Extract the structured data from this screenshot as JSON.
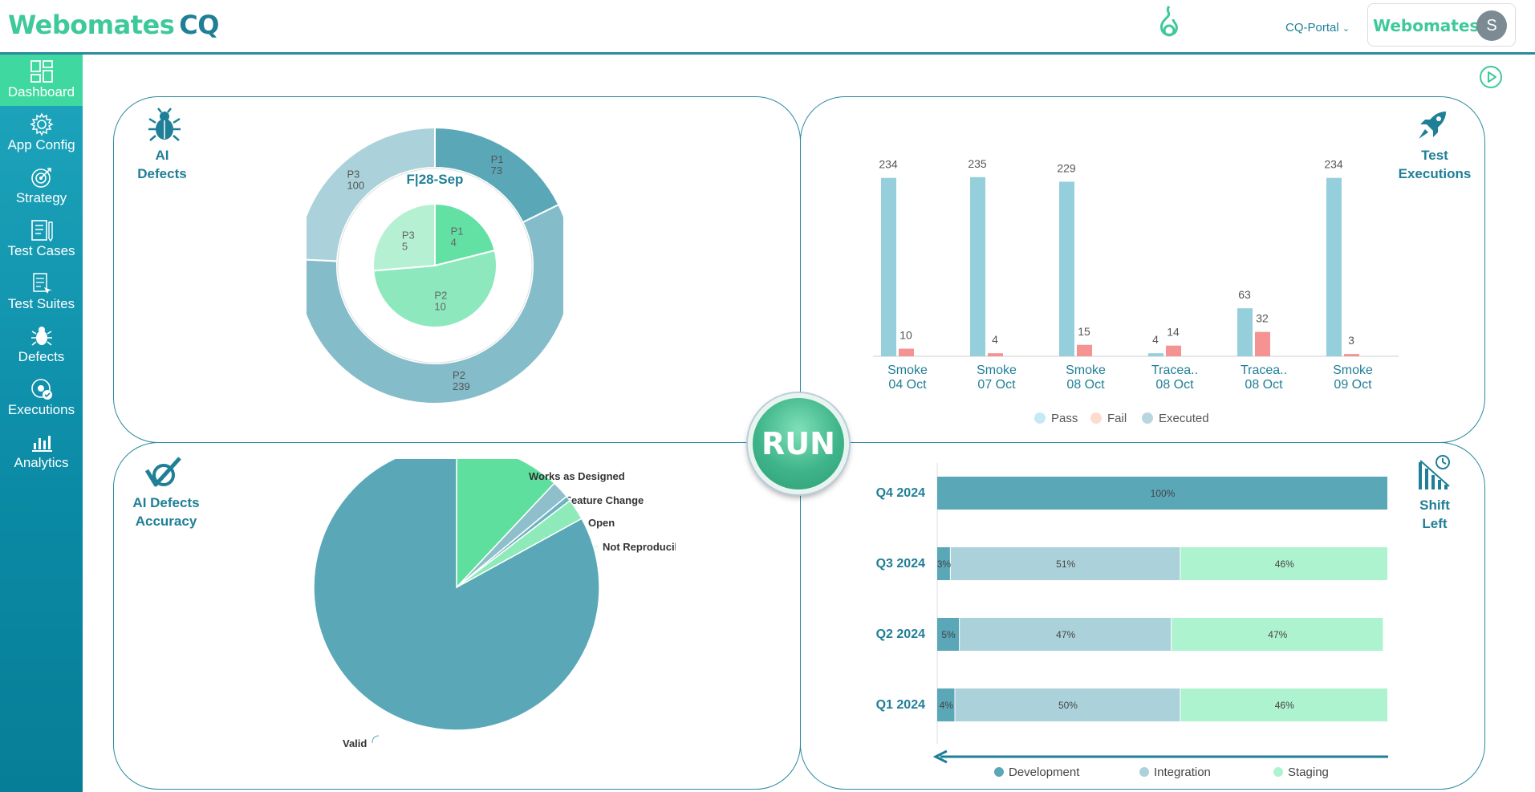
{
  "header": {
    "logo_main": "Webomates",
    "logo_suffix": "CQ",
    "portal_label": "CQ-Portal",
    "brand_name": "Webomates",
    "avatar_initial": "S"
  },
  "sidebar": {
    "items": [
      {
        "label": "Dashboard",
        "icon": "dashboard-icon",
        "active": true
      },
      {
        "label": "App Config",
        "icon": "gear-icon"
      },
      {
        "label": "Strategy",
        "icon": "target-icon"
      },
      {
        "label": "Test Cases",
        "icon": "test-cases-icon"
      },
      {
        "label": "Test Suites",
        "icon": "test-suites-icon"
      },
      {
        "label": "Defects",
        "icon": "bug-icon"
      },
      {
        "label": "Executions",
        "icon": "executions-icon"
      },
      {
        "label": "Analytics",
        "icon": "analytics-icon"
      }
    ]
  },
  "run_button": {
    "label": "RUN"
  },
  "panels": {
    "ai_defects": {
      "title_line1": "AI",
      "title_line2": "Defects"
    },
    "test_executions": {
      "title_line1": "Test",
      "title_line2": "Executions"
    },
    "accuracy": {
      "title_line1": "AI Defects",
      "title_line2": "Accuracy"
    },
    "shift_left": {
      "title_line1": "Shift",
      "title_line2": "Left"
    }
  },
  "colors": {
    "teal": "#1f7f97",
    "green": "#3ec99a",
    "pass": "#95cfdc",
    "fail": "#f59393",
    "dev": "#5aa7b8",
    "integration": "#abd2da",
    "staging": "#aef3cf"
  },
  "chart_data": [
    {
      "type": "pie",
      "id": "ai-defects-donut",
      "center_label": "F|28-Sep",
      "outer": [
        {
          "name": "P1",
          "value": 73
        },
        {
          "name": "P2",
          "value": 239
        },
        {
          "name": "P3",
          "value": 100
        }
      ],
      "inner": [
        {
          "name": "P1",
          "value": 4
        },
        {
          "name": "P2",
          "value": 10
        },
        {
          "name": "P3",
          "value": 5
        }
      ]
    },
    {
      "type": "bar",
      "id": "test-executions",
      "categories": [
        [
          "Smoke",
          "04 Oct"
        ],
        [
          "Smoke",
          "07 Oct"
        ],
        [
          "Smoke",
          "08 Oct"
        ],
        [
          "Tracea..",
          "08 Oct"
        ],
        [
          "Tracea..",
          "08 Oct"
        ],
        [
          "Smoke",
          "09 Oct"
        ]
      ],
      "series": [
        {
          "name": "Pass",
          "values": [
            234,
            235,
            229,
            4,
            63,
            234
          ]
        },
        {
          "name": "Fail",
          "values": [
            10,
            4,
            15,
            14,
            32,
            3
          ]
        }
      ],
      "legend": [
        "Pass",
        "Fail",
        "Executed"
      ],
      "ylim": [
        0,
        240
      ]
    },
    {
      "type": "pie",
      "id": "ai-defects-accuracy",
      "slices": [
        {
          "name": "Works as Designed",
          "value": 12
        },
        {
          "name": "Feature Change",
          "value": 2
        },
        {
          "name": "Open",
          "value": 0.6
        },
        {
          "name": "Not Reproducible",
          "value": 2.4
        },
        {
          "name": "Valid",
          "value": 83
        }
      ]
    },
    {
      "type": "bar",
      "id": "shift-left",
      "orientation": "horizontal-stacked",
      "categories": [
        "Q4 2024",
        "Q3 2024",
        "Q2 2024",
        "Q1 2024"
      ],
      "series": [
        {
          "name": "Development",
          "values": [
            100,
            3,
            5,
            4
          ]
        },
        {
          "name": "Integration",
          "values": [
            0,
            51,
            47,
            50
          ]
        },
        {
          "name": "Staging",
          "values": [
            0,
            46,
            47,
            46
          ]
        }
      ],
      "legend": [
        "Development",
        "Integration",
        "Staging"
      ],
      "xlim": [
        0,
        100
      ]
    }
  ]
}
